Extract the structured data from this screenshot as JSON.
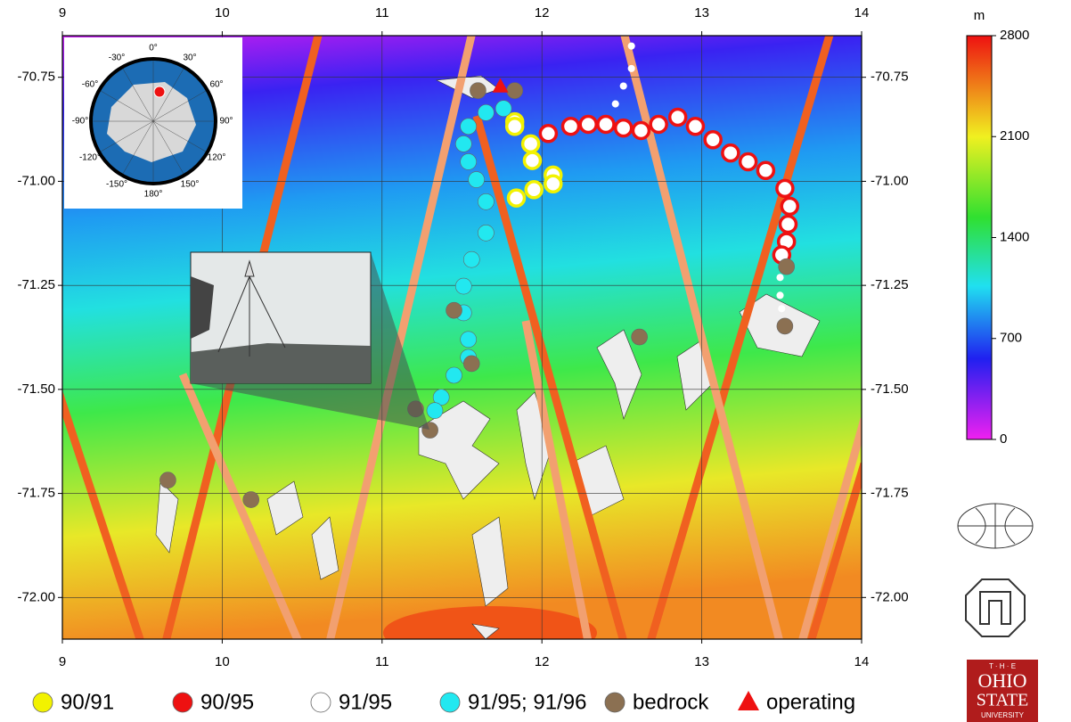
{
  "chart_data": {
    "type": "scatter",
    "xlim": [
      9,
      14
    ],
    "ylim": [
      -70.65,
      -72.1
    ],
    "xticks": [
      9,
      10,
      11,
      12,
      13,
      14
    ],
    "yticks": [
      -70.75,
      {
        "value": -71,
        "label": "-71.00"
      },
      -71.25,
      {
        "value": -71.5,
        "label": "-71.50"
      },
      -71.75,
      {
        "value": -72,
        "label": "-72.00"
      }
    ],
    "grid": true,
    "colorbar": {
      "label": "m",
      "clim": [
        0,
        2800
      ],
      "ticks": [
        0,
        700,
        1400,
        2100,
        2800
      ]
    },
    "series": [
      {
        "name": "90/91",
        "color": "#f2f200",
        "fill": "#ffffff",
        "marker": "circle",
        "x": [
          11.83,
          11.83,
          11.93,
          11.94,
          12.07,
          12.07,
          11.95,
          11.84
        ],
        "y": [
          -70.857,
          -70.868,
          -70.91,
          -70.95,
          -70.985,
          -71.006,
          -71.02,
          -71.04
        ]
      },
      {
        "name": "90/95",
        "color": "#ee1111",
        "fill": "#ffffff",
        "marker": "circle",
        "x": [
          12.04,
          12.18,
          12.29,
          12.4,
          12.51,
          12.62,
          12.73,
          12.85,
          12.96,
          13.07,
          13.18,
          13.29,
          13.4,
          13.52,
          13.55,
          13.54,
          13.53,
          13.5
        ],
        "y": [
          -70.885,
          -70.868,
          -70.863,
          -70.863,
          -70.872,
          -70.878,
          -70.863,
          -70.846,
          -70.868,
          -70.9,
          -70.932,
          -70.953,
          -70.974,
          -71.017,
          -71.06,
          -71.103,
          -71.145,
          -71.177
        ]
      },
      {
        "name": "91/95",
        "color": "#ffffff",
        "marker": "dot",
        "x": [
          12.56,
          12.56,
          12.51,
          12.46,
          13.49,
          13.49,
          13.5
        ],
        "y": [
          -70.675,
          -70.729,
          -70.771,
          -70.814,
          -71.231,
          -71.274,
          -71.306
        ]
      },
      {
        "name": "91/95; 91/96",
        "color": "#22e8f0",
        "marker": "circle",
        "x": [
          11.76,
          11.65,
          11.54,
          11.51,
          11.54,
          11.59,
          11.65,
          11.65,
          11.56,
          11.51,
          11.51,
          11.54,
          11.54,
          11.45,
          11.37,
          11.33
        ],
        "y": [
          -70.825,
          -70.835,
          -70.868,
          -70.91,
          -70.953,
          -70.996,
          -71.049,
          -71.124,
          -71.188,
          -71.252,
          -71.316,
          -71.38,
          -71.423,
          -71.466,
          -71.519,
          -71.551
        ]
      },
      {
        "name": "bedrock",
        "color": "#8b7052",
        "marker": "circle",
        "x": [
          11.6,
          11.83,
          11.45,
          11.56,
          11.21,
          11.3,
          9.66,
          10.18,
          12.61,
          13.53,
          13.52
        ],
        "y": [
          -70.782,
          -70.782,
          -71.31,
          -71.438,
          -71.547,
          -71.598,
          -71.718,
          -71.765,
          -71.374,
          -71.205,
          -71.348
        ]
      },
      {
        "name": "operating",
        "color": "#ee1111",
        "marker": "triangle",
        "x": [
          11.74
        ],
        "y": [
          -70.771
        ]
      }
    ]
  },
  "inset_map": {
    "labels": [
      "0°",
      "30°",
      "60°",
      "90°",
      "120°",
      "150°",
      "180°",
      "-150°",
      "-120°",
      "-90°",
      "-60°",
      "-30°"
    ]
  },
  "logos": {
    "osu": [
      "T · H · E",
      "OHIO",
      "STATE",
      "UNIVERSITY"
    ]
  }
}
